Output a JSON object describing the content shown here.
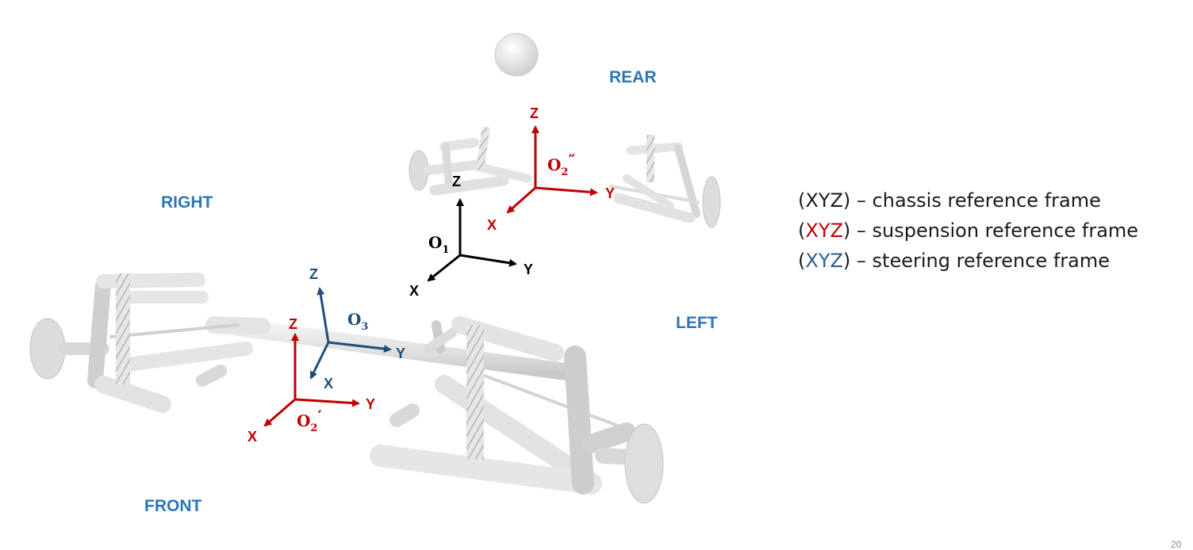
{
  "directions": {
    "rear": "REAR",
    "right": "RIGHT",
    "left": "LEFT",
    "front": "FRONT"
  },
  "frames": {
    "chassis": {
      "origin": "O",
      "origin_sub": "1",
      "x": "X",
      "y": "Y",
      "z": "Z",
      "color": "#000000"
    },
    "suspension_rear": {
      "origin": "O",
      "origin_sub": "2",
      "origin_mark": "″",
      "x": "X",
      "y": "Y",
      "z": "Z",
      "color": "#c00000"
    },
    "suspension_front": {
      "origin": "O",
      "origin_sub": "2",
      "origin_mark": "′",
      "x": "X",
      "y": "Y",
      "z": "Z",
      "color": "#c00000"
    },
    "steering": {
      "origin": "O",
      "origin_sub": "3",
      "x": "X",
      "y": "Y",
      "z": "Z",
      "color": "#1f4e79"
    }
  },
  "legend": [
    {
      "open": "(",
      "axes": "XYZ",
      "close": ")",
      "text": " – chassis reference frame",
      "color": "#1a1a1a"
    },
    {
      "open": "(",
      "axes": "XYZ",
      "close": ")",
      "text": " – suspension reference frame",
      "color": "#c00000"
    },
    {
      "open": "(",
      "axes": "XYZ",
      "close": ")",
      "text": " – steering reference frame",
      "color": "#2e5f8a"
    }
  ],
  "page_number": "20"
}
